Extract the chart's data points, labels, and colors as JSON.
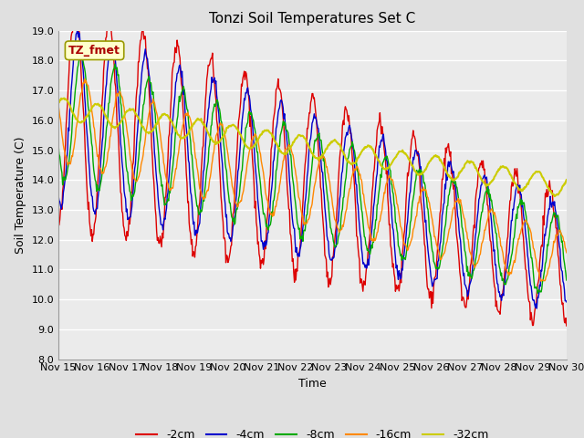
{
  "title": "Tonzi Soil Temperatures Set C",
  "xlabel": "Time",
  "ylabel": "Soil Temperature (C)",
  "ylim": [
    8.0,
    19.0
  ],
  "yticks": [
    8.0,
    9.0,
    10.0,
    11.0,
    12.0,
    13.0,
    14.0,
    15.0,
    16.0,
    17.0,
    18.0,
    19.0
  ],
  "xtick_labels": [
    "Nov 15",
    "Nov 16",
    "Nov 17",
    "Nov 18",
    "Nov 19",
    "Nov 20",
    "Nov 21",
    "Nov 22",
    "Nov 23",
    "Nov 24",
    "Nov 25",
    "Nov 26",
    "Nov 27",
    "Nov 28",
    "Nov 29",
    "Nov 30"
  ],
  "annotation_text": "TZ_fmet",
  "line_colors": {
    "-2cm": "#dd0000",
    "-4cm": "#0000cc",
    "-8cm": "#00aa00",
    "-16cm": "#ff8800",
    "-32cm": "#cccc00"
  },
  "bg_color": "#e0e0e0",
  "plot_bg_color": "#ebebeb",
  "title_fontsize": 11,
  "axis_fontsize": 9,
  "tick_fontsize": 8
}
